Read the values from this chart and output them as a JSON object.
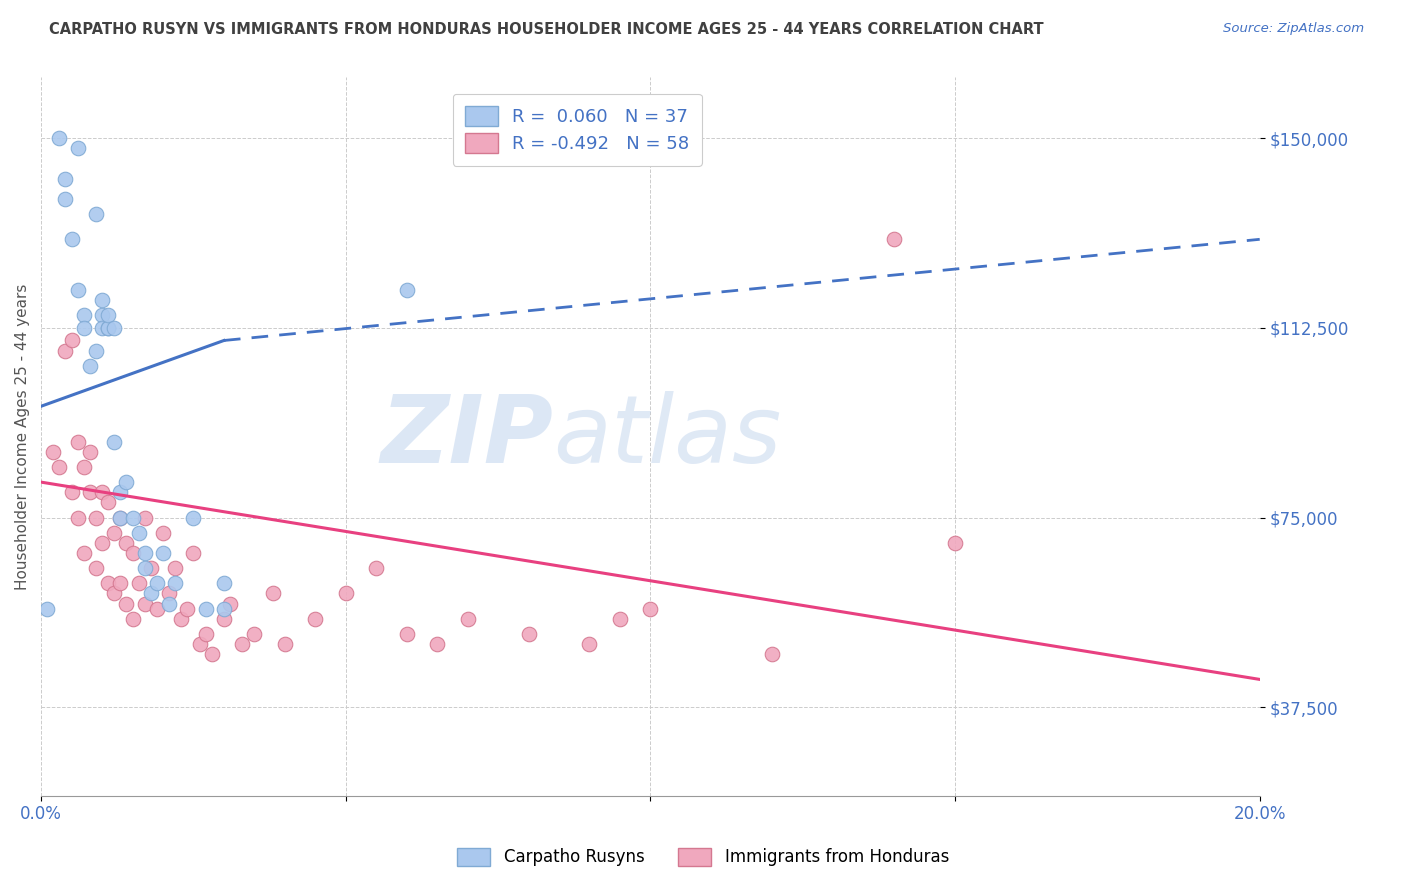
{
  "title": "CARPATHO RUSYN VS IMMIGRANTS FROM HONDURAS HOUSEHOLDER INCOME AGES 25 - 44 YEARS CORRELATION CHART",
  "source": "Source: ZipAtlas.com",
  "ylabel": "Householder Income Ages 25 - 44 years",
  "xlim": [
    0.0,
    0.2
  ],
  "ylim": [
    20000,
    162000
  ],
  "yticks": [
    37500,
    75000,
    112500,
    150000
  ],
  "ytick_labels": [
    "$37,500",
    "$75,000",
    "$112,500",
    "$150,000"
  ],
  "xticks": [
    0.0,
    0.05,
    0.1,
    0.15,
    0.2
  ],
  "xtick_labels": [
    "0.0%",
    "",
    "",
    "",
    "20.0%"
  ],
  "background_color": "#ffffff",
  "series1_color": "#aac8ee",
  "series1_edge": "#80aad4",
  "series1_line_color": "#4472c4",
  "series2_color": "#f0a8be",
  "series2_edge": "#d47890",
  "series2_line_color": "#e84080",
  "label1": "Carpatho Rusyns",
  "label2": "Immigrants from Honduras",
  "series1_R": 0.06,
  "series1_N": 37,
  "series2_R": -0.492,
  "series2_N": 58,
  "grid_color": "#cccccc",
  "title_color": "#404040",
  "axis_label_color": "#555555",
  "tick_label_color_y": "#4472c4",
  "tick_label_color_x": "#4472c4",
  "series1_x": [
    0.001,
    0.003,
    0.004,
    0.004,
    0.005,
    0.006,
    0.006,
    0.007,
    0.007,
    0.008,
    0.009,
    0.009,
    0.01,
    0.01,
    0.01,
    0.011,
    0.011,
    0.011,
    0.012,
    0.012,
    0.013,
    0.013,
    0.014,
    0.015,
    0.016,
    0.017,
    0.017,
    0.018,
    0.019,
    0.02,
    0.021,
    0.022,
    0.025,
    0.027,
    0.03,
    0.03,
    0.06
  ],
  "series1_y": [
    57000,
    150000,
    142000,
    138000,
    130000,
    148000,
    120000,
    115000,
    112500,
    105000,
    135000,
    108000,
    115000,
    112500,
    118000,
    112500,
    112500,
    115000,
    112500,
    90000,
    80000,
    75000,
    82000,
    75000,
    72000,
    68000,
    65000,
    60000,
    62000,
    68000,
    58000,
    62000,
    75000,
    57000,
    62000,
    57000,
    120000
  ],
  "series2_x": [
    0.002,
    0.003,
    0.004,
    0.005,
    0.005,
    0.006,
    0.006,
    0.007,
    0.007,
    0.008,
    0.008,
    0.009,
    0.009,
    0.01,
    0.01,
    0.011,
    0.011,
    0.012,
    0.012,
    0.013,
    0.013,
    0.014,
    0.014,
    0.015,
    0.015,
    0.016,
    0.017,
    0.017,
    0.018,
    0.019,
    0.02,
    0.021,
    0.022,
    0.023,
    0.024,
    0.025,
    0.026,
    0.027,
    0.028,
    0.03,
    0.031,
    0.033,
    0.035,
    0.038,
    0.04,
    0.045,
    0.05,
    0.055,
    0.06,
    0.065,
    0.07,
    0.08,
    0.09,
    0.095,
    0.1,
    0.12,
    0.14,
    0.15
  ],
  "series2_y": [
    88000,
    85000,
    108000,
    110000,
    80000,
    90000,
    75000,
    85000,
    68000,
    88000,
    80000,
    75000,
    65000,
    80000,
    70000,
    78000,
    62000,
    72000,
    60000,
    75000,
    62000,
    70000,
    58000,
    68000,
    55000,
    62000,
    75000,
    58000,
    65000,
    57000,
    72000,
    60000,
    65000,
    55000,
    57000,
    68000,
    50000,
    52000,
    48000,
    55000,
    58000,
    50000,
    52000,
    60000,
    50000,
    55000,
    60000,
    65000,
    52000,
    50000,
    55000,
    52000,
    50000,
    55000,
    57000,
    48000,
    130000,
    70000
  ],
  "trend1_x0": 0.0,
  "trend1_x_split": 0.03,
  "trend1_x1": 0.2,
  "trend1_y0": 97000,
  "trend1_y_split": 110000,
  "trend1_y1": 130000,
  "trend2_x0": 0.0,
  "trend2_x1": 0.2,
  "trend2_y0": 82000,
  "trend2_y1": 43000
}
